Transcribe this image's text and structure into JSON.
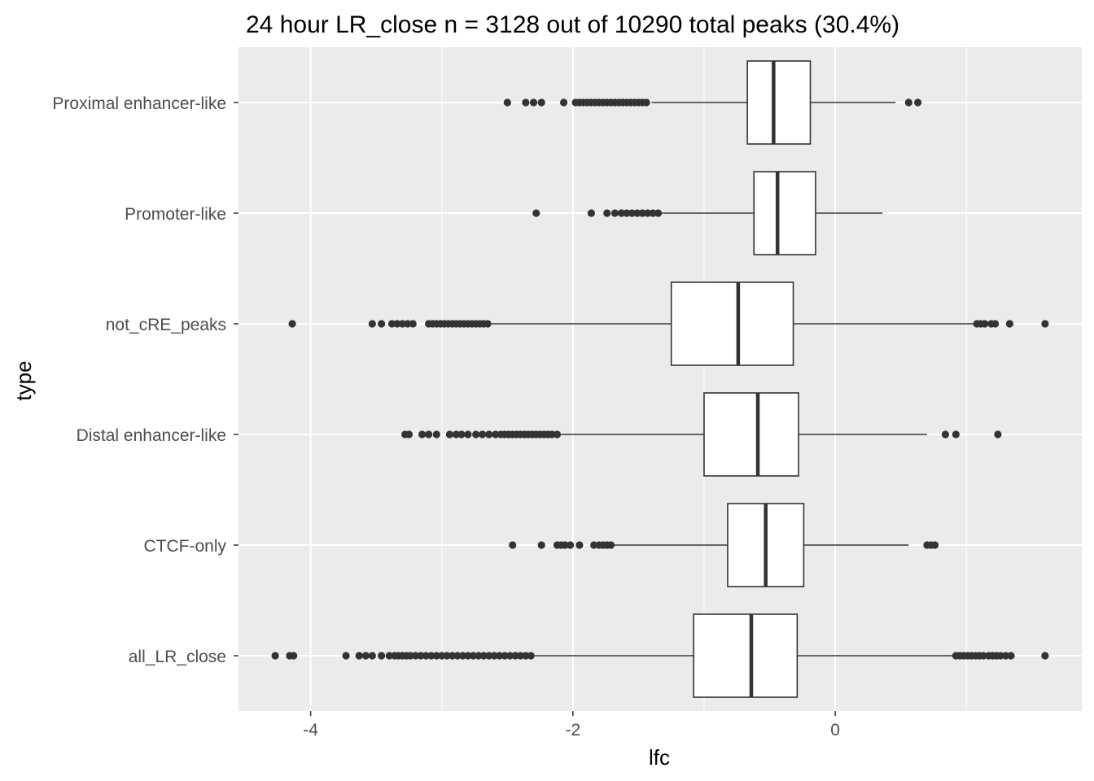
{
  "chart_data": {
    "type": "boxplot",
    "orientation": "horizontal",
    "title": "24 hour LR_close n = 3128 out of 10290 total peaks (30.4%)",
    "xlabel": "lfc",
    "ylabel": "type",
    "xlim": [
      -4.55,
      1.88
    ],
    "x_ticks": [
      -4,
      -2,
      0
    ],
    "x_tick_labels": [
      "-4",
      "-2",
      "0"
    ],
    "grid": true,
    "colors": {
      "panel_background": "#ebebeb",
      "grid": "#ffffff",
      "box_fill": "#ffffff",
      "box_stroke": "#333333",
      "outlier": "#333333"
    },
    "categories": [
      "Proximal enhancer-like",
      "Promoter-like",
      "not_cRE_peaks",
      "Distal enhancer-like",
      "CTCF-only",
      "all_LR_close"
    ],
    "boxes": [
      {
        "category": "Proximal enhancer-like",
        "whisker_low": -1.4,
        "q1": -0.67,
        "median": -0.47,
        "q3": -0.19,
        "whisker_high": 0.46,
        "outliers": [
          -2.5,
          -2.36,
          -2.3,
          -2.24,
          -2.07,
          -1.98,
          -1.95,
          -1.92,
          -1.89,
          -1.86,
          -1.83,
          -1.8,
          -1.77,
          -1.74,
          -1.71,
          -1.68,
          -1.65,
          -1.62,
          -1.59,
          -1.56,
          -1.53,
          -1.5,
          -1.47,
          -1.44,
          0.56,
          0.63
        ]
      },
      {
        "category": "Promoter-like",
        "whisker_low": -1.33,
        "q1": -0.62,
        "median": -0.44,
        "q3": -0.15,
        "whisker_high": 0.36,
        "outliers": [
          -2.28,
          -1.86,
          -1.74,
          -1.68,
          -1.63,
          -1.59,
          -1.55,
          -1.51,
          -1.47,
          -1.43,
          -1.39,
          -1.35
        ]
      },
      {
        "category": "not_cRE_peaks",
        "whisker_low": -2.62,
        "q1": -1.25,
        "median": -0.74,
        "q3": -0.32,
        "whisker_high": 1.07,
        "outliers": [
          -4.14,
          -3.53,
          -3.46,
          -3.38,
          -3.34,
          -3.3,
          -3.26,
          -3.22,
          -3.1,
          -3.07,
          -3.04,
          -3.01,
          -2.98,
          -2.95,
          -2.92,
          -2.89,
          -2.86,
          -2.83,
          -2.8,
          -2.77,
          -2.74,
          -2.71,
          -2.68,
          -2.65,
          1.08,
          1.11,
          1.14,
          1.19,
          1.22,
          1.33,
          1.6
        ]
      },
      {
        "category": "Distal enhancer-like",
        "whisker_low": -2.09,
        "q1": -1.0,
        "median": -0.59,
        "q3": -0.28,
        "whisker_high": 0.7,
        "outliers": [
          -3.28,
          -3.25,
          -3.15,
          -3.1,
          -3.04,
          -2.94,
          -2.89,
          -2.85,
          -2.8,
          -2.74,
          -2.69,
          -2.64,
          -2.59,
          -2.55,
          -2.52,
          -2.49,
          -2.46,
          -2.43,
          -2.4,
          -2.37,
          -2.34,
          -2.31,
          -2.28,
          -2.25,
          -2.22,
          -2.19,
          -2.16,
          -2.12,
          0.84,
          0.92,
          1.24
        ]
      },
      {
        "category": "CTCF-only",
        "whisker_low": -1.69,
        "q1": -0.82,
        "median": -0.53,
        "q3": -0.24,
        "whisker_high": 0.56,
        "outliers": [
          -2.46,
          -2.24,
          -2.12,
          -2.09,
          -2.06,
          -2.02,
          -1.95,
          -1.84,
          -1.8,
          -1.77,
          -1.74,
          -1.71,
          0.7,
          0.73,
          0.76
        ]
      },
      {
        "category": "all_LR_close",
        "whisker_low": -2.29,
        "q1": -1.08,
        "median": -0.64,
        "q3": -0.29,
        "whisker_high": 0.9,
        "outliers": [
          -4.27,
          -4.16,
          -4.13,
          -3.73,
          -3.63,
          -3.58,
          -3.53,
          -3.46,
          -3.4,
          -3.36,
          -3.33,
          -3.3,
          -3.27,
          -3.24,
          -3.2,
          -3.16,
          -3.12,
          -3.08,
          -3.04,
          -3.0,
          -2.96,
          -2.92,
          -2.88,
          -2.84,
          -2.8,
          -2.76,
          -2.72,
          -2.68,
          -2.64,
          -2.6,
          -2.56,
          -2.52,
          -2.48,
          -2.44,
          -2.4,
          -2.36,
          -2.32,
          0.92,
          0.95,
          0.98,
          1.01,
          1.04,
          1.07,
          1.1,
          1.13,
          1.17,
          1.2,
          1.23,
          1.26,
          1.3,
          1.34,
          1.6
        ]
      }
    ]
  }
}
